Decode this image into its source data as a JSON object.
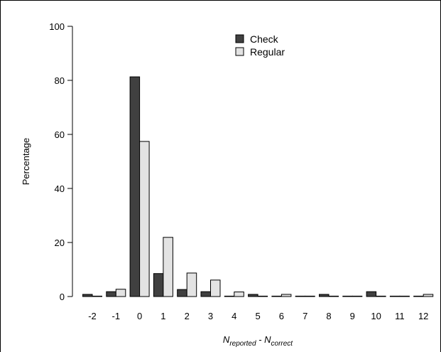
{
  "chart_data": {
    "type": "bar",
    "categories": [
      "-2",
      "-1",
      "0",
      "1",
      "2",
      "3",
      "4",
      "5",
      "6",
      "7",
      "8",
      "9",
      "10",
      "11",
      "12"
    ],
    "series": [
      {
        "name": "Check",
        "color": "#404040",
        "values": [
          0.8,
          1.8,
          81.3,
          8.5,
          2.6,
          1.8,
          0.0,
          0.8,
          0.0,
          0.0,
          0.8,
          0.0,
          1.8,
          0.0,
          0.0
        ]
      },
      {
        "name": "Regular",
        "color": "#e3e3e3",
        "values": [
          0.1,
          2.7,
          57.4,
          21.9,
          8.7,
          6.1,
          1.7,
          0.1,
          0.8,
          0.1,
          0.1,
          0.1,
          0.1,
          0.1,
          0.8
        ]
      }
    ],
    "xlabel_main": "N",
    "xlabel_sub1": "reported",
    "xlabel_sep": " - N",
    "xlabel_sub2": "correct",
    "ylabel": "Percentage",
    "ylim": [
      0,
      100
    ],
    "yticks": [
      "0",
      "20",
      "40",
      "60",
      "80",
      "100"
    ],
    "grid": false,
    "legend_position": "top-center"
  }
}
